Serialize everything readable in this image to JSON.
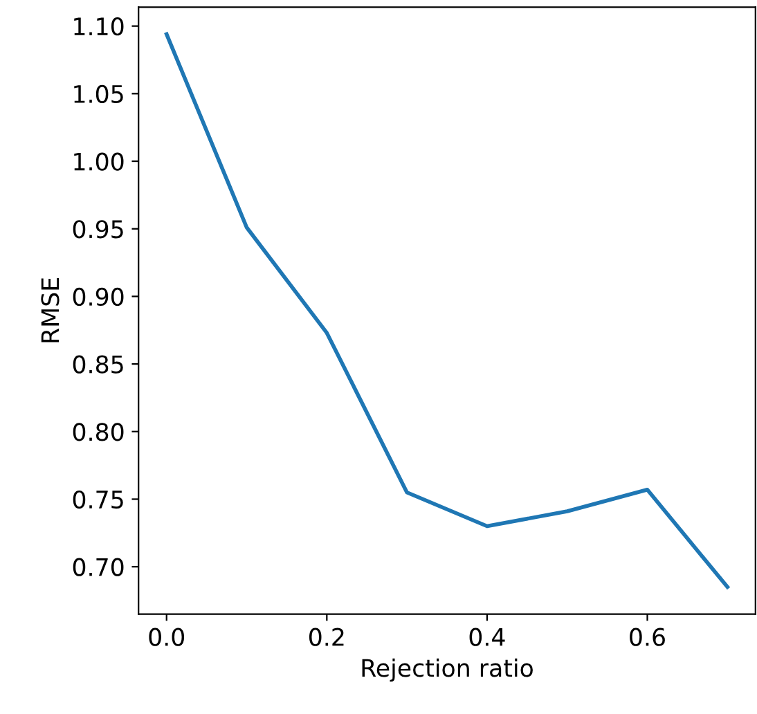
{
  "chart_data": {
    "type": "line",
    "xlabel": "Rejection ratio",
    "ylabel": "RMSE",
    "x": [
      0.0,
      0.1,
      0.2,
      0.3,
      0.4,
      0.5,
      0.6,
      0.7
    ],
    "series": [
      {
        "color": "#1f77b4",
        "values": [
          1.094,
          0.951,
          0.873,
          0.755,
          0.73,
          0.741,
          0.757,
          0.685
        ]
      }
    ],
    "xlim": [
      -0.035,
      0.735
    ],
    "ylim": [
      0.665,
      1.114
    ],
    "xticks": [
      {
        "value": 0,
        "label": "0.0"
      },
      0.2,
      0.4,
      0.6
    ],
    "yticks": [
      {
        "value": 0.7,
        "label": "0.70"
      },
      0.75,
      {
        "value": 0.8,
        "label": "0.80"
      },
      0.85,
      {
        "value": 0.9,
        "label": "0.90"
      },
      0.95,
      {
        "value": 1.0,
        "label": "1.00"
      },
      1.05,
      {
        "value": 1.1,
        "label": "1.10"
      }
    ],
    "grid": false,
    "legend": false,
    "marker": "none",
    "line_style": "solid"
  }
}
